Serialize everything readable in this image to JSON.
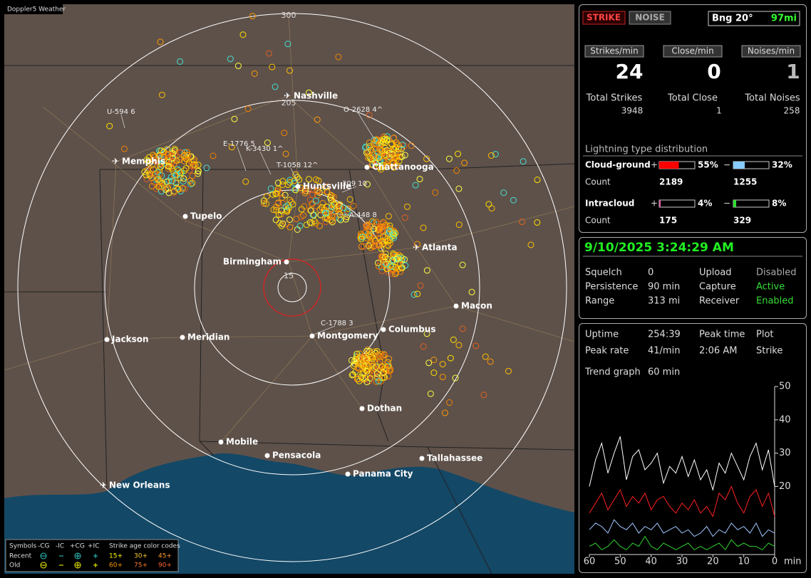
{
  "window": {
    "title": "Doppler5 Weather"
  },
  "map": {
    "range_labels": [
      "300",
      "205",
      "15"
    ],
    "cities": [
      "Nashville",
      "Memphis",
      "Chattanooga",
      "Huntsville",
      "Tupelo",
      "Atlanta",
      "Birmingham",
      "Macon",
      "Jackson",
      "Meridian",
      "Montgomery",
      "Columbus",
      "Dothan",
      "Mobile",
      "Pensacola",
      "Tallahassee",
      "Panama City",
      "New Orleans"
    ],
    "sensors": [
      "U-594  6",
      "O-2628  4^",
      "E-1776  5",
      "K-3430  1^",
      "T-1058  12^",
      "309  10",
      "A-448  8",
      "C-1788  3"
    ]
  },
  "legend": {
    "symbols_label": "Symbols",
    "symbols": [
      "-CG",
      "-IC",
      "+CG",
      "+IC"
    ],
    "age_label": "Strike age color codes",
    "rows": [
      {
        "label": "Recent",
        "ages": [
          "15+",
          "30+",
          "45+"
        ]
      },
      {
        "label": "Old",
        "ages": [
          "60+",
          "75+",
          "90+"
        ]
      }
    ]
  },
  "status": {
    "buttons": [
      "STRIKE",
      "NOISE"
    ],
    "bearing": "Bng 20°",
    "distance": "97mi"
  },
  "rates": [
    {
      "label": "Strikes/min",
      "value": 24,
      "total_label": "Total Strikes",
      "total": 3948
    },
    {
      "label": "Close/min",
      "value": 0,
      "total_label": "Total Close",
      "total": 1
    },
    {
      "label": "Noises/min",
      "value": 1,
      "total_label": "Total Noises",
      "total": 258
    }
  ],
  "distribution": {
    "title": "Lightning type distribution",
    "count_label": "Count",
    "rows": [
      {
        "label": "Cloud-ground",
        "pos_sign": "+",
        "pos": {
          "value": 55,
          "label": "55%"
        },
        "neg_sign": "−",
        "neg": {
          "value": 32,
          "label": "32%"
        },
        "pos_count": 2189,
        "neg_count": 1255
      },
      {
        "label": "Intracloud",
        "pos_sign": "+",
        "pos": {
          "value": 4,
          "label": "4%"
        },
        "neg_sign": "−",
        "neg": {
          "value": 8,
          "label": "8%"
        },
        "pos_count": 175,
        "neg_count": 329
      }
    ]
  },
  "clock": "9/10/2025 3:24:29 AM",
  "settings": [
    [
      "Squelch",
      "0",
      "Upload",
      "Disabled"
    ],
    [
      "Persistence",
      "90 min",
      "Capture",
      "Active"
    ],
    [
      "Range",
      "313 mi",
      "Receiver",
      "Enabled"
    ]
  ],
  "stats": [
    [
      "Uptime",
      "254:39",
      "Peak time",
      "Plot"
    ],
    [
      "Peak rate",
      "41/min",
      "2:06 AM",
      "Strike"
    ],
    [
      "Trend graph",
      "60 min"
    ]
  ],
  "chart_data": {
    "type": "line",
    "xlabel": "min",
    "x": [
      60,
      58,
      56,
      54,
      52,
      50,
      48,
      46,
      44,
      42,
      40,
      38,
      36,
      34,
      32,
      30,
      28,
      26,
      24,
      22,
      20,
      18,
      16,
      14,
      12,
      10,
      8,
      6,
      4,
      2,
      0
    ],
    "xlim": [
      60,
      0
    ],
    "ylim": [
      0,
      50
    ],
    "xticks": [
      60,
      50,
      40,
      30,
      20,
      10,
      0
    ],
    "yticks": [
      20,
      30,
      40,
      50
    ],
    "series": [
      {
        "color": "#ffffff",
        "values": [
          20,
          28,
          33,
          24,
          30,
          35,
          22,
          29,
          31,
          25,
          27,
          30,
          21,
          26,
          24,
          29,
          23,
          28,
          22,
          25,
          19,
          27,
          24,
          30,
          26,
          22,
          29,
          33,
          25,
          31,
          20
        ]
      },
      {
        "color": "#ff2020",
        "values": [
          12,
          15,
          18,
          13,
          16,
          19,
          14,
          17,
          15,
          18,
          13,
          16,
          17,
          14,
          12,
          15,
          13,
          16,
          12,
          14,
          11,
          18,
          16,
          20,
          15,
          12,
          17,
          19,
          14,
          18,
          11
        ]
      },
      {
        "color": "#a0c8ff",
        "values": [
          7,
          9,
          8,
          6,
          10,
          8,
          7,
          9,
          6,
          8,
          7,
          9,
          6,
          7,
          8,
          6,
          7,
          5,
          6,
          8,
          5,
          7,
          6,
          9,
          7,
          8,
          6,
          9,
          5,
          7,
          6
        ]
      },
      {
        "color": "#30d030",
        "values": [
          2,
          3,
          1,
          2,
          4,
          2,
          1,
          3,
          2,
          5,
          2,
          1,
          3,
          2,
          1,
          2,
          3,
          1,
          2,
          1,
          2,
          3,
          1,
          4,
          2,
          3,
          2,
          2,
          1,
          3,
          2
        ]
      }
    ]
  }
}
